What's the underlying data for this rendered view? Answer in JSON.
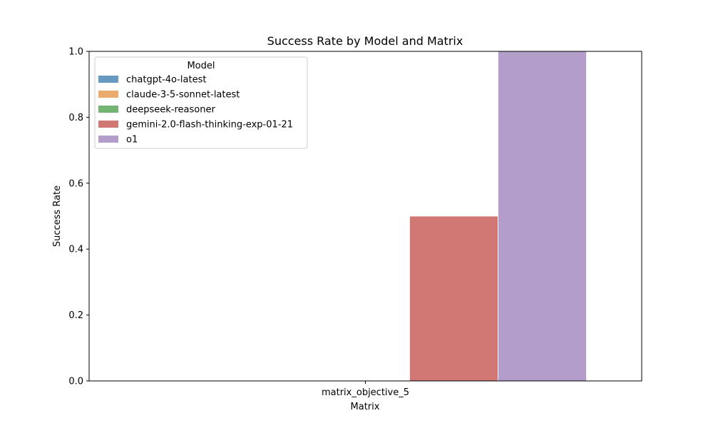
{
  "chart_data": {
    "type": "bar",
    "title": "Success Rate by Model and Matrix",
    "xlabel": "Matrix",
    "ylabel": "Success Rate",
    "categories": [
      "matrix_objective_5"
    ],
    "ylim": [
      0,
      1.0
    ],
    "yticks": [
      "0.0",
      "0.2",
      "0.4",
      "0.6",
      "0.8",
      "1.0"
    ],
    "grid": false,
    "legend": {
      "title": "Model",
      "placement": "top-left"
    },
    "series": [
      {
        "name": "chatgpt-4o-latest",
        "values": [
          0.0
        ],
        "color": "#6699bf"
      },
      {
        "name": "claude-3-5-sonnet-latest",
        "values": [
          0.0
        ],
        "color": "#ecab6e"
      },
      {
        "name": "deepseek-reasoner",
        "values": [
          0.0
        ],
        "color": "#73b474"
      },
      {
        "name": "gemini-2.0-flash-thinking-exp-01-21",
        "values": [
          0.5
        ],
        "color": "#d17875"
      },
      {
        "name": "o1",
        "values": [
          1.0
        ],
        "color": "#b39dcb"
      }
    ]
  }
}
